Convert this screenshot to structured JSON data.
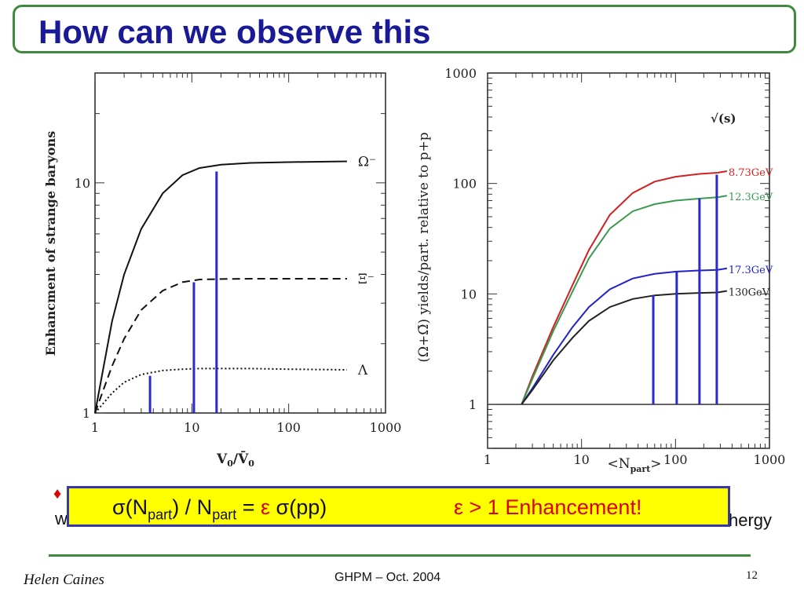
{
  "slide": {
    "title": "How can we observe this",
    "bullet_start": "w",
    "trailing_text": "hergy",
    "box_equation": {
      "sigma_n": "σ(N",
      "sub1": "part",
      "mid": ") / N",
      "sub2": "part",
      "eq": " = ",
      "eps": "ε",
      "rest": " σ(pp)"
    },
    "box_enhancement": "ε > 1 Enhancement!",
    "footer_author": "Helen Caines",
    "footer_conf": "GHPM – Oct. 2004",
    "page_number": "12"
  },
  "chart_data": [
    {
      "type": "line",
      "xlabel": "V0/V̄0",
      "ylabel": "Enhancment of strange baryons",
      "xscale": "log",
      "yscale": "log",
      "xlim": [
        1,
        1000
      ],
      "ylim": [
        1,
        30
      ],
      "xticks": [
        "1",
        "10",
        "100",
        "1000"
      ],
      "yticks": [
        "1",
        "10"
      ],
      "series": [
        {
          "name": "Ω⁻",
          "style": "solid",
          "x": [
            1,
            1.5,
            2,
            3,
            5,
            8,
            12,
            20,
            40,
            100,
            400
          ],
          "y": [
            1,
            2.5,
            4.0,
            6.3,
            9.0,
            10.8,
            11.6,
            12.0,
            12.2,
            12.3,
            12.4
          ]
        },
        {
          "name": "Ξ⁻",
          "style": "dashed",
          "x": [
            1,
            1.5,
            2,
            3,
            5,
            8,
            12,
            20,
            40,
            100,
            400
          ],
          "y": [
            1,
            1.6,
            2.1,
            2.8,
            3.4,
            3.7,
            3.8,
            3.82,
            3.83,
            3.83,
            3.83
          ]
        },
        {
          "name": "Λ",
          "style": "dotted",
          "x": [
            1,
            1.5,
            2,
            3,
            5,
            8,
            12,
            20,
            40,
            100,
            400
          ],
          "y": [
            1,
            1.22,
            1.36,
            1.47,
            1.53,
            1.55,
            1.56,
            1.56,
            1.56,
            1.55,
            1.54
          ]
        }
      ],
      "markers": [
        {
          "x": 3.7,
          "y": 1.45
        },
        {
          "x": 10.5,
          "y": 3.7
        },
        {
          "x": 18,
          "y": 11.2
        }
      ]
    },
    {
      "type": "line",
      "xlabel": "<Npart>",
      "ylabel": "(Ω+Ω̄) yields/part. relative to p+p",
      "legend_title": "√(s)",
      "xscale": "log",
      "yscale": "log",
      "xlim": [
        1,
        1000
      ],
      "ylim": [
        0.4,
        1000
      ],
      "xticks": [
        "1",
        "10",
        "100",
        "1000"
      ],
      "yticks": [
        "1",
        "10",
        "100",
        "1000"
      ],
      "reference_line": 1,
      "colors": {
        "red": "#d22020",
        "green": "#3a9a50",
        "blue": "#2222cc",
        "black": "#222222"
      },
      "series": [
        {
          "name": "8.73GeV",
          "color": "#d22020",
          "x": [
            2.3,
            3,
            5,
            8,
            12,
            20,
            35,
            60,
            100,
            180,
            280
          ],
          "y": [
            1,
            1.8,
            5,
            12,
            25,
            52,
            82,
            104,
            115,
            122,
            125
          ]
        },
        {
          "name": "12.3GeV",
          "color": "#3a9a50",
          "x": [
            2.3,
            3,
            5,
            8,
            12,
            20,
            35,
            60,
            100,
            180,
            280
          ],
          "y": [
            1,
            1.7,
            4.6,
            10.5,
            21,
            39,
            56,
            65,
            70,
            73,
            75
          ]
        },
        {
          "name": "17.3GeV",
          "color": "#2222cc",
          "x": [
            2.3,
            3,
            5,
            8,
            12,
            20,
            35,
            60,
            100,
            180,
            280
          ],
          "y": [
            1,
            1.4,
            2.8,
            5.0,
            7.6,
            11.0,
            13.8,
            15.2,
            15.9,
            16.3,
            16.5
          ]
        },
        {
          "name": "130GeV",
          "color": "#222222",
          "x": [
            2.3,
            3,
            5,
            8,
            12,
            20,
            35,
            60,
            100,
            180,
            280
          ],
          "y": [
            1,
            1.35,
            2.5,
            4.0,
            5.7,
            7.6,
            9.0,
            9.7,
            10.0,
            10.2,
            10.3
          ]
        }
      ],
      "markers": [
        {
          "x": 58,
          "y": 9.7
        },
        {
          "x": 103,
          "y": 15.9
        },
        {
          "x": 180,
          "y": 73
        },
        {
          "x": 275,
          "y": 120
        }
      ]
    }
  ]
}
